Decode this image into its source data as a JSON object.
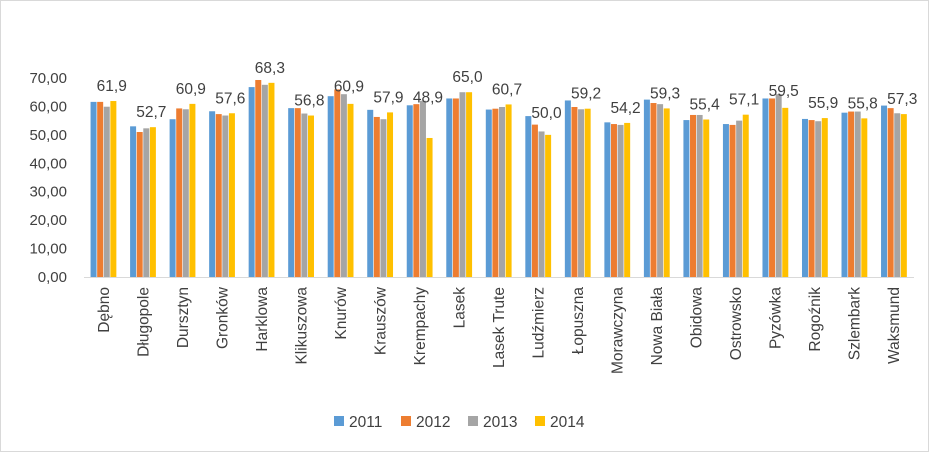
{
  "chart_data": {
    "type": "bar",
    "categories": [
      "Dębno",
      "Długopole",
      "Dursztyn",
      "Gronków",
      "Harklowa",
      "Klikuszowa",
      "Knurów",
      "Krauszów",
      "Krempachy",
      "Lasek",
      "Lasek Trute",
      "Ludźmierz",
      "Łopuszna",
      "Morawczyna",
      "Nowa Biała",
      "Obidowa",
      "Ostrowsko",
      "Pyzówka",
      "Rogoźnik",
      "Szlembark",
      "Waksmund"
    ],
    "series": [
      {
        "name": "2011",
        "color": "#5b9bd5",
        "values": [
          61.6,
          53.0,
          55.5,
          58.3,
          66.8,
          59.4,
          63.6,
          58.8,
          60.4,
          62.8,
          58.9,
          56.6,
          62.1,
          54.4,
          62.4,
          55.2,
          53.8,
          62.8,
          55.6,
          57.8,
          60.3
        ]
      },
      {
        "name": "2012",
        "color": "#ed7d31",
        "values": [
          61.6,
          51.0,
          59.3,
          57.3,
          69.3,
          59.4,
          66.0,
          56.3,
          60.8,
          62.8,
          59.2,
          53.6,
          59.8,
          53.8,
          61.2,
          57.0,
          53.5,
          62.8,
          55.2,
          58.2,
          59.4
        ]
      },
      {
        "name": "2013",
        "color": "#a5a5a5",
        "values": [
          59.9,
          52.3,
          59.0,
          56.8,
          67.6,
          57.5,
          64.3,
          55.5,
          62.0,
          65.0,
          59.8,
          51.2,
          59.0,
          53.5,
          60.8,
          57.0,
          55.0,
          64.3,
          54.8,
          58.2,
          57.6
        ]
      },
      {
        "name": "2014",
        "color": "#ffc000",
        "values": [
          61.9,
          52.7,
          60.9,
          57.6,
          68.3,
          56.8,
          60.9,
          57.9,
          48.9,
          65.0,
          60.7,
          50.0,
          59.2,
          54.2,
          59.3,
          55.4,
          57.1,
          59.5,
          55.9,
          55.8,
          57.3
        ]
      }
    ],
    "data_labels": [
      "61,9",
      "52,7",
      "60,9",
      "57,6",
      "68,3",
      "56,8",
      "60,9",
      "57,9",
      "48,9",
      "65,0",
      "60,7",
      "50,0",
      "59,2",
      "54,2",
      "59,3",
      "55,4",
      "57,1",
      "59,5",
      "55,9",
      "55,8",
      "57,3"
    ],
    "y_ticks": [
      "0,00",
      "10,00",
      "20,00",
      "30,00",
      "40,00",
      "50,00",
      "60,00",
      "70,00"
    ],
    "ylim": [
      0,
      70
    ],
    "y_step": 10,
    "grid": false,
    "legend_position": "bottom",
    "title": "",
    "xlabel": "",
    "ylabel": ""
  }
}
